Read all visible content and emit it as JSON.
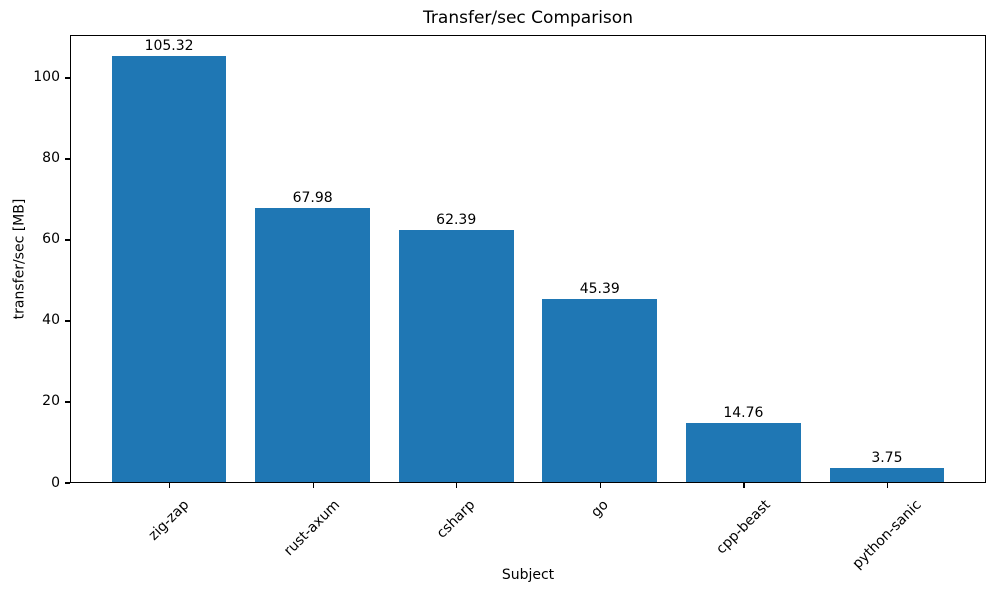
{
  "chart_data": {
    "type": "bar",
    "title": "Transfer/sec Comparison",
    "xlabel": "Subject",
    "ylabel": "transfer/sec [MB]",
    "categories": [
      "zig-zap",
      "rust-axum",
      "csharp",
      "go",
      "cpp-beast",
      "python-sanic"
    ],
    "values": [
      105.32,
      67.98,
      62.39,
      45.39,
      14.76,
      3.75
    ],
    "bar_value_labels": [
      "105.32",
      "67.98",
      "62.39",
      "45.39",
      "14.76",
      "3.75"
    ],
    "ylim": [
      0,
      110.6
    ],
    "yticks": [
      0,
      20,
      40,
      60,
      80,
      100
    ],
    "xtick_rotation_deg": 45,
    "bar_color": "#1f77b4",
    "text_color": "#000000",
    "grid": false,
    "legend": null
  }
}
